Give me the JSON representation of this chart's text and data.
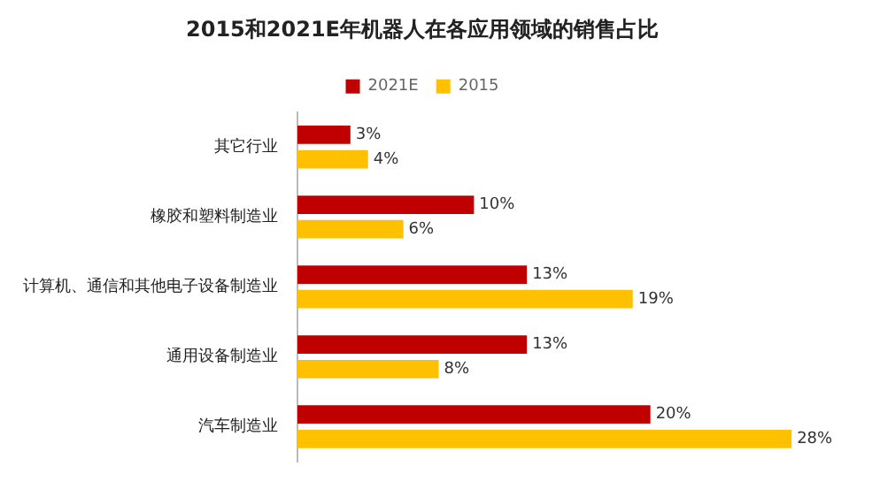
{
  "chart_data": {
    "type": "bar",
    "orientation": "horizontal",
    "title": "2015和2021E年机器人在各应用领域的销售占比",
    "categories": [
      "其它行业",
      "橡胶和塑料制造业",
      "计算机、通信和其他电子设备制造业",
      "通用设备制造业",
      "汽车制造业"
    ],
    "series": [
      {
        "name": "2021E",
        "color": "#c00000",
        "values": [
          3,
          10,
          13,
          13,
          20
        ],
        "value_labels": [
          "3%",
          "10%",
          "13%",
          "13%",
          "20%"
        ]
      },
      {
        "name": "2015",
        "color": "#ffc000",
        "values": [
          4,
          6,
          19,
          8,
          28
        ],
        "value_labels": [
          "4%",
          "6%",
          "19%",
          "8%",
          "28%"
        ]
      }
    ],
    "legend": "top",
    "grid": false
  }
}
